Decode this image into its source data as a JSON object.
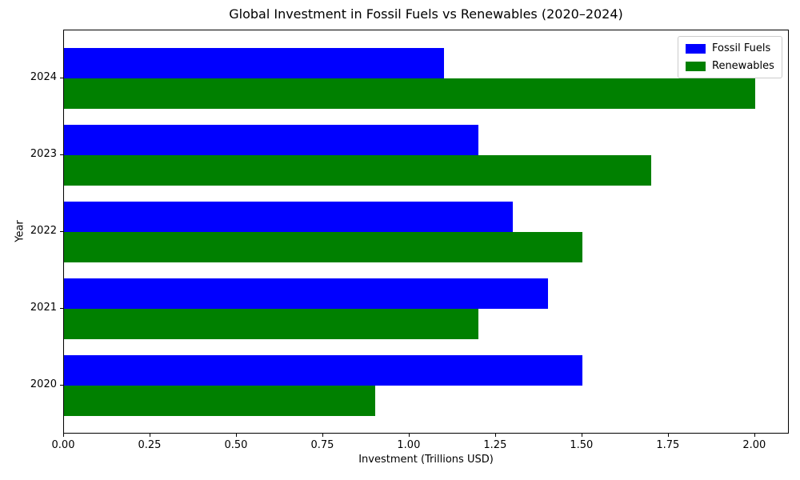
{
  "chart": {
    "title": "Global Investment in Fossil Fuels vs Renewables (2020–2024)",
    "xlabel": "Investment (Trillions USD)",
    "ylabel": "Year"
  },
  "chart_data": {
    "type": "bar",
    "orientation": "horizontal",
    "title": "Global Investment in Fossil Fuels vs Renewables (2020–2024)",
    "xlabel": "Investment (Trillions USD)",
    "ylabel": "Year",
    "categories": [
      "2020",
      "2021",
      "2022",
      "2023",
      "2024"
    ],
    "series": [
      {
        "name": "Fossil Fuels",
        "color": "#0000ff",
        "values": [
          1.5,
          1.4,
          1.3,
          1.2,
          1.1
        ]
      },
      {
        "name": "Renewables",
        "color": "#008000",
        "values": [
          0.9,
          1.2,
          1.5,
          1.7,
          2.0
        ]
      }
    ],
    "xlim": [
      0,
      2.1
    ],
    "x_ticks": [
      0.0,
      0.25,
      0.5,
      0.75,
      1.0,
      1.25,
      1.5,
      1.75,
      2.0
    ],
    "x_tick_labels": [
      "0.00",
      "0.25",
      "0.50",
      "0.75",
      "1.00",
      "1.25",
      "1.50",
      "1.75",
      "2.00"
    ],
    "y_tick_labels": [
      "2024",
      "2023",
      "2022",
      "2021",
      "2020"
    ],
    "legend_position": "upper right",
    "grid": false,
    "background": "#ffffff"
  }
}
